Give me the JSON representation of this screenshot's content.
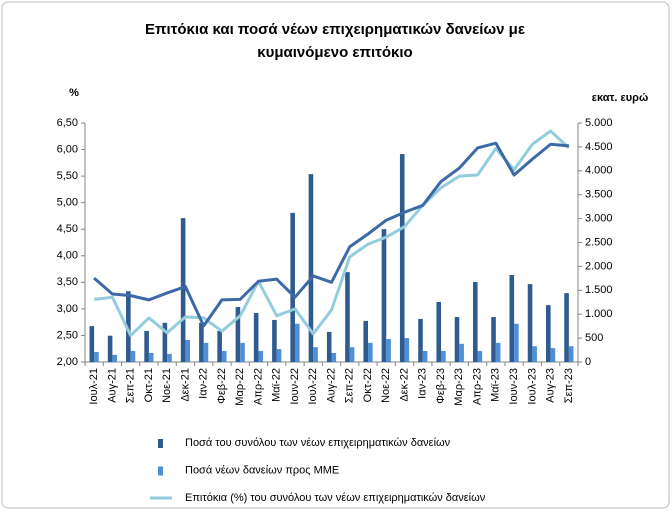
{
  "chart_data": {
    "type": "bar",
    "title": [
      "Επιτόκια και ποσά νέων επιχειρηματικών δανείων με",
      "κυμαινόμενο επιτόκιο"
    ],
    "y_label": "%",
    "y2_label": "εκατ. ευρώ",
    "categories": [
      "Ιουλ-21",
      "Αυγ-21",
      "Σεπ-21",
      "Οκτ-21",
      "Νοε-21",
      "Δεκ-21",
      "Ιαν-22",
      "Φεβ-22",
      "Μαρ-22",
      "Απρ-22",
      "Μαϊ-22",
      "Ιουν-22",
      "Ιουλ-22",
      "Αυγ-22",
      "Σεπ-22",
      "Οκτ-22",
      "Νοε-22",
      "Δεκ-22",
      "Ιαν-23",
      "Φεβ-23",
      "Μαρ-23",
      "Απρ-23",
      "Μαϊ-23",
      "Ιουν-23",
      "Ιουλ-23",
      "Αυγ-23",
      "Σεπ-23"
    ],
    "series": [
      {
        "name": "Ποσά του συνόλου των νέων επιχειρηματικών δανείων",
        "type": "bar",
        "axis": "y2",
        "color": "#2f5b8f",
        "values": [
          750,
          550,
          1480,
          650,
          820,
          3010,
          820,
          650,
          1150,
          1025,
          880,
          3120,
          3930,
          630,
          1880,
          860,
          2780,
          4350,
          900,
          1255,
          940,
          1675,
          940,
          1820,
          1630,
          1190,
          1440
        ]
      },
      {
        "name": "Ποσά νέων δανείων προς ΜΜΕ",
        "type": "bar",
        "axis": "y2",
        "color": "#4f8fd6",
        "values": [
          210,
          150,
          230,
          190,
          170,
          460,
          400,
          230,
          400,
          230,
          270,
          800,
          310,
          190,
          310,
          400,
          480,
          500,
          230,
          230,
          380,
          230,
          400,
          800,
          330,
          290,
          330
        ]
      },
      {
        "name": "Επιτόκια (%) του συνόλου των νέων επιχειρηματικών δανείων",
        "type": "line",
        "color": "#93cddd",
        "values": [
          3.18,
          3.22,
          2.5,
          2.83,
          2.55,
          2.85,
          2.83,
          2.58,
          2.87,
          3.52,
          2.87,
          3.0,
          2.53,
          2.98,
          3.98,
          4.22,
          4.35,
          4.55,
          4.95,
          5.28,
          5.5,
          5.52,
          6.02,
          5.62,
          6.1,
          6.35,
          6.03
        ]
      },
      {
        "type": "line",
        "color": "#3d6aa6",
        "values": [
          3.58,
          3.28,
          3.25,
          3.17,
          3.3,
          3.42,
          2.68,
          3.17,
          3.18,
          3.52,
          3.56,
          3.22,
          3.62,
          3.5,
          4.17,
          4.41,
          4.67,
          4.82,
          4.95,
          5.4,
          5.65,
          6.03,
          6.12,
          5.52,
          5.82,
          6.1,
          6.07
        ]
      }
    ],
    "ylim": [
      2,
      6.5
    ],
    "yticks": [
      {
        "value": 2,
        "label": "2,00"
      },
      {
        "value": 2.5,
        "label": "2,50"
      },
      {
        "value": 3,
        "label": "3,00"
      },
      {
        "value": 3.5,
        "label": "3,50"
      },
      {
        "value": 4,
        "label": "4,00"
      },
      {
        "value": 4.5,
        "label": "4,50"
      },
      {
        "value": 5,
        "label": "5,00"
      },
      {
        "value": 5.5,
        "label": "5,50"
      },
      {
        "value": 6,
        "label": "6,00"
      },
      {
        "value": 6.5,
        "label": "6,50"
      }
    ],
    "y2lim": [
      0,
      5000
    ],
    "y2ticks": [
      0,
      500,
      {
        "value": 1000,
        "label": "1.000"
      },
      {
        "value": 1500,
        "label": "1.500"
      },
      {
        "value": 2000,
        "label": "2.000"
      },
      {
        "value": 2500,
        "label": "2.500"
      },
      {
        "value": 3000,
        "label": "3.000"
      },
      {
        "value": 3500,
        "label": "3.500"
      },
      {
        "value": 4000,
        "label": "4.000"
      },
      {
        "value": 4500,
        "label": "4.500"
      },
      {
        "value": 5000,
        "label": "5.000"
      }
    ],
    "grid": false
  }
}
